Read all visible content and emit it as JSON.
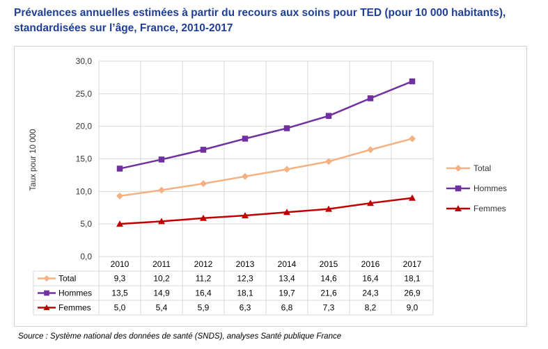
{
  "title": "Prévalences annuelles estimées à partir du recours aux soins pour TED (pour 10 000 habitants), standardisées sur l’âge, France, 2010-2017",
  "source": "Source : Système national des données de santé (SNDS), analyses Santé publique France",
  "chart_data": {
    "type": "line",
    "ylabel": "Taux pour 10 000",
    "ylim": [
      0,
      30
    ],
    "yticks": [
      "0,0",
      "5,0",
      "10,0",
      "15,0",
      "20,0",
      "25,0",
      "30,0"
    ],
    "grid": true,
    "legend_position": "right",
    "categories": [
      "2010",
      "2011",
      "2012",
      "2013",
      "2014",
      "2015",
      "2016",
      "2017"
    ],
    "series": [
      {
        "name": "Total",
        "color": "#f4b183",
        "marker": "diamond",
        "values": [
          9.3,
          10.2,
          11.2,
          12.3,
          13.4,
          14.6,
          16.4,
          18.1
        ],
        "labels": [
          "9,3",
          "10,2",
          "11,2",
          "12,3",
          "13,4",
          "14,6",
          "16,4",
          "18,1"
        ]
      },
      {
        "name": "Hommes",
        "color": "#7030a0",
        "marker": "square",
        "values": [
          13.5,
          14.9,
          16.4,
          18.1,
          19.7,
          21.6,
          24.3,
          26.9
        ],
        "labels": [
          "13,5",
          "14,9",
          "16,4",
          "18,1",
          "19,7",
          "21,6",
          "24,3",
          "26,9"
        ]
      },
      {
        "name": "Femmes",
        "color": "#c00000",
        "marker": "triangle",
        "values": [
          5.0,
          5.4,
          5.9,
          6.3,
          6.8,
          7.3,
          8.2,
          9.0
        ],
        "labels": [
          "5,0",
          "5,4",
          "5,9",
          "6,3",
          "6,8",
          "7,3",
          "8,2",
          "9,0"
        ]
      }
    ]
  }
}
